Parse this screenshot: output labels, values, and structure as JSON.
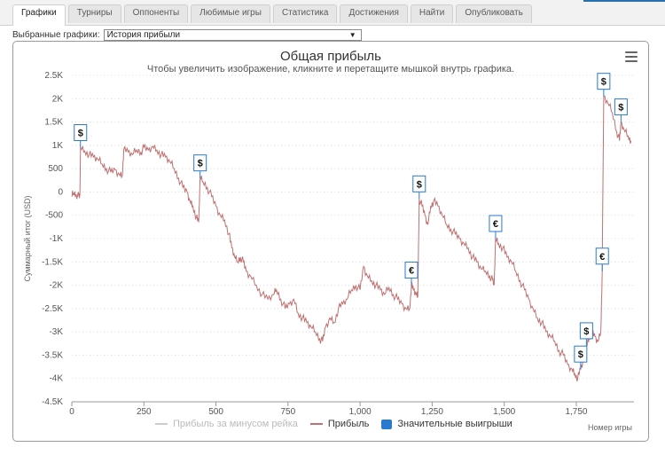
{
  "tabs": [
    {
      "label": "Графики",
      "active": true
    },
    {
      "label": "Турниры",
      "active": false
    },
    {
      "label": "Оппоненты",
      "active": false
    },
    {
      "label": "Любимые игры",
      "active": false
    },
    {
      "label": "Статистика",
      "active": false
    },
    {
      "label": "Достижения",
      "active": false
    },
    {
      "label": "Найти",
      "active": false
    },
    {
      "label": "Опубликовать",
      "active": false
    }
  ],
  "selector": {
    "label": "Выбранные графики:",
    "value": "История прибыли",
    "arrow": "▼"
  },
  "colors": {
    "profit": "#c07070",
    "rake": "#cccccc",
    "big_wins": "#2a7ad2",
    "grid": "#d8d8d8"
  },
  "chart_data": {
    "type": "line",
    "title": "Общая прибыль",
    "subtitle": "Чтобы увеличить изображение, кликните и перетащите мышкой внутрь графика.",
    "xlabel": "Номер игры",
    "ylabel": "Суммарный итог (USD)",
    "ylim": [
      -4500,
      2500
    ],
    "xlim": [
      0,
      1950
    ],
    "yticks": [
      2500,
      2000,
      1500,
      1000,
      500,
      0,
      -500,
      -1000,
      -1500,
      -2000,
      -2500,
      -3000,
      -3500,
      -4000,
      -4500
    ],
    "ytick_labels": [
      "2.5K",
      "2K",
      "1.5K",
      "1K",
      "500",
      "0",
      "-500",
      "-1K",
      "-1.5K",
      "-2K",
      "-2.5K",
      "-3K",
      "-3.5K",
      "-4K",
      "-4.5K"
    ],
    "xticks": [
      0,
      250,
      500,
      750,
      1000,
      1250,
      1500,
      1750
    ],
    "xtick_labels": [
      "0",
      "250",
      "500",
      "750",
      "1,000",
      "1,250",
      "1,500",
      "1,750"
    ],
    "grid": "horizontal dotted",
    "legend": [
      {
        "label": "Прибыль за минусом рейка",
        "kind": "line",
        "color": "#cccccc"
      },
      {
        "label": "Прибыль",
        "kind": "line",
        "color": "#c07070"
      },
      {
        "label": "Значительные выигрыши",
        "kind": "box",
        "color": "#2a7ad2"
      }
    ],
    "series": [
      {
        "name": "Прибыль",
        "points": [
          [
            0,
            -100
          ],
          [
            5,
            -20
          ],
          [
            15,
            -50
          ],
          [
            25,
            -100
          ],
          [
            28,
            -80
          ],
          [
            30,
            950
          ],
          [
            45,
            880
          ],
          [
            60,
            800
          ],
          [
            75,
            750
          ],
          [
            90,
            700
          ],
          [
            105,
            600
          ],
          [
            120,
            500
          ],
          [
            135,
            420
          ],
          [
            150,
            480
          ],
          [
            165,
            380
          ],
          [
            175,
            350
          ],
          [
            180,
            900
          ],
          [
            195,
            860
          ],
          [
            210,
            800
          ],
          [
            225,
            900
          ],
          [
            240,
            850
          ],
          [
            250,
            960
          ],
          [
            265,
            900
          ],
          [
            280,
            980
          ],
          [
            295,
            900
          ],
          [
            310,
            800
          ],
          [
            325,
            750
          ],
          [
            340,
            650
          ],
          [
            355,
            500
          ],
          [
            370,
            300
          ],
          [
            385,
            100
          ],
          [
            400,
            0
          ],
          [
            410,
            -200
          ],
          [
            420,
            -300
          ],
          [
            432,
            -550
          ],
          [
            440,
            -650
          ],
          [
            445,
            300
          ],
          [
            455,
            220
          ],
          [
            470,
            100
          ],
          [
            485,
            -100
          ],
          [
            500,
            -300
          ],
          [
            515,
            -500
          ],
          [
            530,
            -600
          ],
          [
            545,
            -900
          ],
          [
            555,
            -1200
          ],
          [
            565,
            -1400
          ],
          [
            575,
            -1500
          ],
          [
            585,
            -1400
          ],
          [
            595,
            -1500
          ],
          [
            605,
            -1700
          ],
          [
            620,
            -1800
          ],
          [
            640,
            -2000
          ],
          [
            660,
            -2200
          ],
          [
            680,
            -2300
          ],
          [
            700,
            -2200
          ],
          [
            710,
            -2100
          ],
          [
            725,
            -2300
          ],
          [
            740,
            -2500
          ],
          [
            755,
            -2400
          ],
          [
            770,
            -2300
          ],
          [
            785,
            -2600
          ],
          [
            800,
            -2700
          ],
          [
            815,
            -2800
          ],
          [
            830,
            -2900
          ],
          [
            845,
            -3000
          ],
          [
            860,
            -3150
          ],
          [
            870,
            -3200
          ],
          [
            880,
            -2900
          ],
          [
            895,
            -2700
          ],
          [
            910,
            -2800
          ],
          [
            925,
            -2500
          ],
          [
            940,
            -2400
          ],
          [
            955,
            -2300
          ],
          [
            970,
            -2100
          ],
          [
            985,
            -2000
          ],
          [
            1000,
            -2100
          ],
          [
            1012,
            -1600
          ],
          [
            1025,
            -1800
          ],
          [
            1040,
            -1900
          ],
          [
            1055,
            -2000
          ],
          [
            1070,
            -2100
          ],
          [
            1085,
            -2200
          ],
          [
            1100,
            -2050
          ],
          [
            1115,
            -2200
          ],
          [
            1130,
            -2300
          ],
          [
            1145,
            -2400
          ],
          [
            1160,
            -2500
          ],
          [
            1172,
            -2500
          ],
          [
            1178,
            -2000
          ],
          [
            1185,
            -2100
          ],
          [
            1195,
            -2200
          ],
          [
            1200,
            -2250
          ],
          [
            1205,
            -150
          ],
          [
            1215,
            -300
          ],
          [
            1225,
            -500
          ],
          [
            1235,
            -700
          ],
          [
            1245,
            -300
          ],
          [
            1255,
            -200
          ],
          [
            1270,
            -300
          ],
          [
            1285,
            -500
          ],
          [
            1300,
            -700
          ],
          [
            1315,
            -800
          ],
          [
            1330,
            -900
          ],
          [
            1345,
            -1000
          ],
          [
            1360,
            -1100
          ],
          [
            1375,
            -1200
          ],
          [
            1390,
            -1400
          ],
          [
            1405,
            -1500
          ],
          [
            1420,
            -1650
          ],
          [
            1435,
            -1700
          ],
          [
            1450,
            -1800
          ],
          [
            1460,
            -1900
          ],
          [
            1465,
            -2000
          ],
          [
            1470,
            -1000
          ],
          [
            1480,
            -1100
          ],
          [
            1495,
            -1200
          ],
          [
            1510,
            -1400
          ],
          [
            1525,
            -1500
          ],
          [
            1540,
            -1700
          ],
          [
            1555,
            -1900
          ],
          [
            1570,
            -2100
          ],
          [
            1585,
            -2300
          ],
          [
            1600,
            -2500
          ],
          [
            1615,
            -2700
          ],
          [
            1630,
            -2800
          ],
          [
            1645,
            -3000
          ],
          [
            1660,
            -3100
          ],
          [
            1675,
            -3200
          ],
          [
            1690,
            -3400
          ],
          [
            1705,
            -3500
          ],
          [
            1720,
            -3700
          ],
          [
            1735,
            -3800
          ],
          [
            1745,
            -3900
          ],
          [
            1755,
            -4000
          ],
          [
            1765,
            -3800
          ],
          [
            1775,
            -3600
          ],
          [
            1785,
            -3300
          ],
          [
            1795,
            -3100
          ],
          [
            1805,
            -3000
          ],
          [
            1815,
            -3100
          ],
          [
            1825,
            -3200
          ],
          [
            1835,
            -3000
          ],
          [
            1840,
            -1700
          ],
          [
            1845,
            2050
          ],
          [
            1860,
            1900
          ],
          [
            1875,
            1700
          ],
          [
            1890,
            1300
          ],
          [
            1900,
            1100
          ],
          [
            1905,
            1500
          ],
          [
            1915,
            1350
          ],
          [
            1930,
            1200
          ],
          [
            1940,
            1100
          ]
        ]
      }
    ],
    "markers": [
      {
        "x": 30,
        "y": 950,
        "symbol": "$"
      },
      {
        "x": 445,
        "y": 300,
        "symbol": "$"
      },
      {
        "x": 1178,
        "y": -2000,
        "symbol": "€"
      },
      {
        "x": 1205,
        "y": -150,
        "symbol": "$"
      },
      {
        "x": 1470,
        "y": -1000,
        "symbol": "€"
      },
      {
        "x": 1765,
        "y": -3800,
        "symbol": "$"
      },
      {
        "x": 1785,
        "y": -3300,
        "symbol": "$"
      },
      {
        "x": 1840,
        "y": -1700,
        "symbol": "€"
      },
      {
        "x": 1845,
        "y": 2050,
        "symbol": "$"
      },
      {
        "x": 1905,
        "y": 1500,
        "symbol": "$"
      }
    ]
  }
}
